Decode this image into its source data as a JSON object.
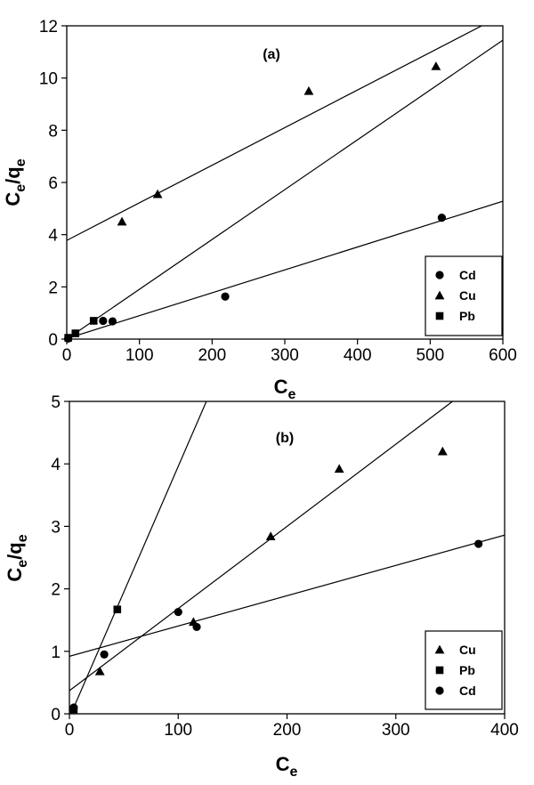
{
  "chart_data": [
    {
      "type": "scatter",
      "panel_label": "(a)",
      "xlabel": {
        "main": "C",
        "sub": "e"
      },
      "ylabel": {
        "main1": "C",
        "sub1": "e",
        "slash": "/q",
        "sub2": "e"
      },
      "xlim": [
        0,
        600
      ],
      "ylim": [
        0,
        12
      ],
      "xticks": [
        0,
        100,
        200,
        300,
        400,
        500,
        600
      ],
      "yticks": [
        0,
        2,
        4,
        6,
        8,
        10,
        12
      ],
      "legend_position": "bottom-right",
      "series": [
        {
          "name": "Cd",
          "marker": "circle",
          "points": [
            [
              2,
              0.02
            ],
            [
              50,
              0.7
            ],
            [
              63,
              0.68
            ],
            [
              218,
              1.63
            ],
            [
              516,
              4.65
            ]
          ],
          "fit": [
            [
              0,
              0.02
            ],
            [
              600,
              5.28
            ]
          ]
        },
        {
          "name": "Cu",
          "marker": "triangle",
          "points": [
            [
              76,
              4.5
            ],
            [
              125,
              5.55
            ],
            [
              333,
              9.5
            ],
            [
              508,
              10.45
            ]
          ],
          "fit": [
            [
              0,
              3.78
            ],
            [
              600,
              12.42
            ]
          ]
        },
        {
          "name": "Pb",
          "marker": "square",
          "points": [
            [
              2,
              0.05
            ],
            [
              12,
              0.22
            ],
            [
              37,
              0.7
            ]
          ],
          "fit": [
            [
              0,
              0.0
            ],
            [
              600,
              11.45
            ]
          ]
        }
      ]
    },
    {
      "type": "scatter",
      "panel_label": "(b)",
      "xlabel": {
        "main": "C",
        "sub": "e"
      },
      "ylabel": {
        "main1": "C",
        "sub1": "e",
        "slash": "/q",
        "sub2": "e"
      },
      "xlim": [
        0,
        400
      ],
      "ylim": [
        0,
        5
      ],
      "xticks": [
        0,
        100,
        200,
        300,
        400
      ],
      "yticks": [
        0,
        1,
        2,
        3,
        4,
        5
      ],
      "legend_position": "bottom-right",
      "series": [
        {
          "name": "Cu",
          "marker": "triangle",
          "points": [
            [
              28,
              0.68
            ],
            [
              114,
              1.47
            ],
            [
              185,
              2.84
            ],
            [
              248,
              3.92
            ],
            [
              343,
              4.2
            ]
          ],
          "fit": [
            [
              0,
              0.37
            ],
            [
              400,
              5.63
            ]
          ]
        },
        {
          "name": "Pb",
          "marker": "square",
          "points": [
            [
              4,
              0.07
            ],
            [
              44,
              1.67
            ]
          ],
          "fit": [
            [
              0,
              -0.06
            ],
            [
              200,
              7.98
            ]
          ]
        },
        {
          "name": "Cd",
          "marker": "circle",
          "points": [
            [
              4,
              0.1
            ],
            [
              32,
              0.95
            ],
            [
              100,
              1.63
            ],
            [
              117,
              1.39
            ],
            [
              376,
              2.72
            ]
          ],
          "fit": [
            [
              0,
              0.92
            ],
            [
              400,
              2.86
            ]
          ]
        }
      ]
    }
  ]
}
